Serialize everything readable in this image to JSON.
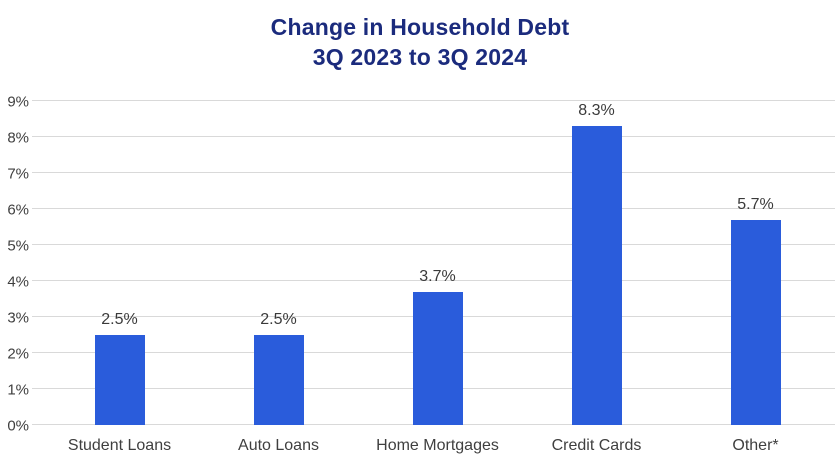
{
  "title": {
    "line1": "Change in Household Debt",
    "line2": "3Q 2023 to 3Q 2024"
  },
  "colors": {
    "title_text": "#1b2b7d",
    "bar_fill": "#2a5cdb",
    "gridline": "#d9d9d9",
    "axis_text": "#3f3f3f",
    "background": "#ffffff"
  },
  "chart_data": {
    "type": "bar",
    "title": "Change in Household Debt 3Q 2023 to 3Q 2024",
    "categories": [
      "Student Loans",
      "Auto Loans",
      "Home Mortgages",
      "Credit Cards",
      "Other*"
    ],
    "values": [
      2.5,
      2.5,
      3.7,
      8.3,
      5.7
    ],
    "data_labels": [
      "2.5%",
      "2.5%",
      "3.7%",
      "8.3%",
      "5.7%"
    ],
    "xlabel": "",
    "ylabel": "",
    "ylim": [
      0,
      9
    ],
    "ytick_step": 1,
    "ytick_labels": [
      "0%",
      "1%",
      "2%",
      "3%",
      "4%",
      "5%",
      "6%",
      "7%",
      "8%",
      "9%"
    ],
    "grid": "horizontal",
    "legend": "none"
  }
}
